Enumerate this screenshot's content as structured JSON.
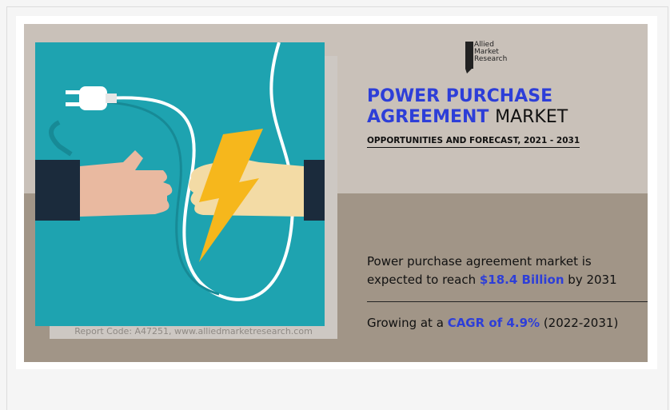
{
  "logo": {
    "lines": [
      "Allied",
      "Market",
      "Research"
    ]
  },
  "header": {
    "title_highlight_1": "POWER PURCHASE",
    "title_highlight_2": "AGREEMENT",
    "title_rest": "MARKET",
    "subtitle": "OPPORTUNITIES AND FORECAST, 2021 - 2031"
  },
  "stats": [
    {
      "before": "Power purchase agreement market is expected to reach",
      "highlight": "$18.4 Billion",
      "after": "by 2031"
    },
    {
      "before": "Growing at a",
      "highlight": "CAGR of 4.9%",
      "after": "(2022-2031)"
    }
  ],
  "report_code": "Report Code: A47251, www.alliedmarketresearch.com"
}
